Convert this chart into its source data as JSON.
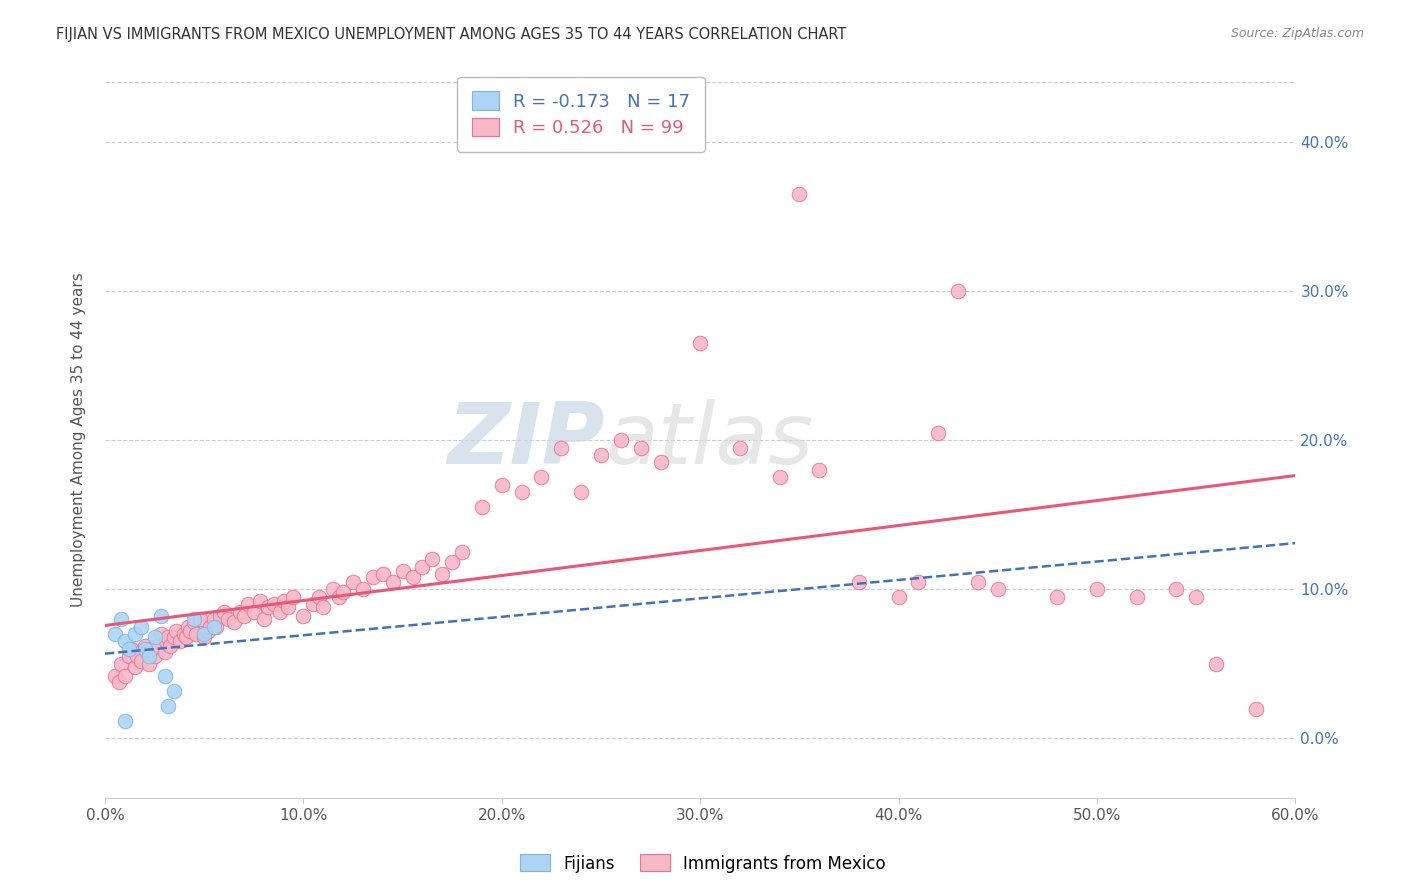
{
  "title": "FIJIAN VS IMMIGRANTS FROM MEXICO UNEMPLOYMENT AMONG AGES 35 TO 44 YEARS CORRELATION CHART",
  "source": "Source: ZipAtlas.com",
  "ylabel": "Unemployment Among Ages 35 to 44 years",
  "xlim": [
    0.0,
    0.6
  ],
  "ylim": [
    -0.04,
    0.44
  ],
  "yticks": [
    0.0,
    0.1,
    0.2,
    0.3,
    0.4
  ],
  "ytick_labels": [
    "0.0%",
    "10.0%",
    "20.0%",
    "30.0%",
    "40.0%"
  ],
  "xticks": [
    0.0,
    0.1,
    0.2,
    0.3,
    0.4,
    0.5,
    0.6
  ],
  "xtick_labels": [
    "0.0%",
    "10.0%",
    "20.0%",
    "30.0%",
    "40.0%",
    "50.0%",
    "60.0%"
  ],
  "fijian_color": "#add4f5",
  "mexico_color": "#f7b8c8",
  "fijian_edge_color": "#7fb3e0",
  "mexico_edge_color": "#f07090",
  "fijian_trend_color": "#4472b8",
  "mexico_trend_color": "#e85878",
  "legend_fijian_R": "-0.173",
  "legend_fijian_N": "17",
  "legend_mexico_R": "0.526",
  "legend_mexico_N": "99",
  "watermark_zip": "ZIP",
  "watermark_atlas": "atlas",
  "fijian_x": [
    0.005,
    0.008,
    0.01,
    0.012,
    0.015,
    0.018,
    0.02,
    0.022,
    0.025,
    0.028,
    0.03,
    0.032,
    0.035,
    0.045,
    0.05,
    0.055,
    0.01
  ],
  "fijian_y": [
    0.07,
    0.08,
    0.065,
    0.06,
    0.07,
    0.075,
    0.06,
    0.055,
    0.068,
    0.082,
    0.042,
    0.022,
    0.032,
    0.08,
    0.07,
    0.075,
    0.012
  ],
  "mexico_x": [
    0.005,
    0.007,
    0.008,
    0.01,
    0.012,
    0.013,
    0.015,
    0.016,
    0.018,
    0.02,
    0.021,
    0.022,
    0.023,
    0.025,
    0.026,
    0.028,
    0.03,
    0.031,
    0.032,
    0.033,
    0.035,
    0.036,
    0.038,
    0.04,
    0.041,
    0.042,
    0.043,
    0.045,
    0.046,
    0.048,
    0.05,
    0.052,
    0.053,
    0.055,
    0.056,
    0.058,
    0.06,
    0.062,
    0.065,
    0.068,
    0.07,
    0.072,
    0.075,
    0.078,
    0.08,
    0.082,
    0.085,
    0.088,
    0.09,
    0.092,
    0.095,
    0.1,
    0.105,
    0.108,
    0.11,
    0.115,
    0.118,
    0.12,
    0.125,
    0.13,
    0.135,
    0.14,
    0.145,
    0.15,
    0.155,
    0.16,
    0.165,
    0.17,
    0.175,
    0.18,
    0.19,
    0.2,
    0.21,
    0.22,
    0.23,
    0.24,
    0.25,
    0.26,
    0.27,
    0.28,
    0.3,
    0.32,
    0.34,
    0.35,
    0.36,
    0.38,
    0.4,
    0.41,
    0.42,
    0.43,
    0.44,
    0.45,
    0.48,
    0.5,
    0.52,
    0.54,
    0.55,
    0.56,
    0.58
  ],
  "mexico_y": [
    0.042,
    0.038,
    0.05,
    0.042,
    0.055,
    0.06,
    0.048,
    0.055,
    0.052,
    0.062,
    0.058,
    0.05,
    0.06,
    0.055,
    0.062,
    0.07,
    0.058,
    0.065,
    0.068,
    0.062,
    0.068,
    0.072,
    0.065,
    0.07,
    0.068,
    0.075,
    0.072,
    0.078,
    0.07,
    0.08,
    0.068,
    0.072,
    0.075,
    0.08,
    0.075,
    0.082,
    0.085,
    0.08,
    0.078,
    0.085,
    0.082,
    0.09,
    0.085,
    0.092,
    0.08,
    0.088,
    0.09,
    0.085,
    0.092,
    0.088,
    0.095,
    0.082,
    0.09,
    0.095,
    0.088,
    0.1,
    0.095,
    0.098,
    0.105,
    0.1,
    0.108,
    0.11,
    0.105,
    0.112,
    0.108,
    0.115,
    0.12,
    0.11,
    0.118,
    0.125,
    0.155,
    0.17,
    0.165,
    0.175,
    0.195,
    0.165,
    0.19,
    0.2,
    0.195,
    0.185,
    0.265,
    0.195,
    0.175,
    0.365,
    0.18,
    0.105,
    0.095,
    0.105,
    0.205,
    0.3,
    0.105,
    0.1,
    0.095,
    0.1,
    0.095,
    0.1,
    0.095,
    0.05,
    0.02
  ]
}
